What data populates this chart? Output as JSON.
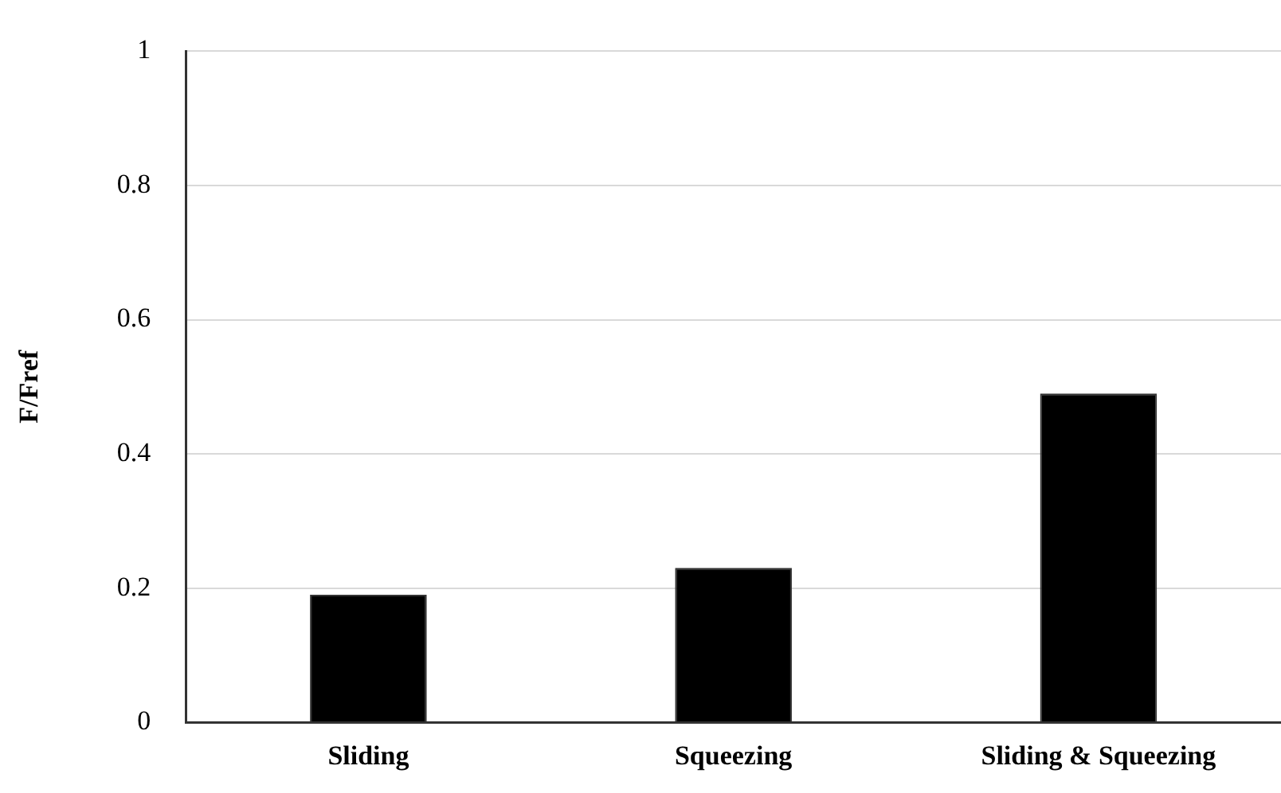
{
  "chart_data": {
    "type": "bar",
    "ylabel": "F/Fref",
    "categories": [
      "Sliding",
      "Squeezing",
      "Sliding & Squeezing"
    ],
    "values": [
      0.19,
      0.23,
      0.49
    ],
    "color": "#000000",
    "ylim": [
      0,
      1
    ],
    "yticks": [
      0,
      0.2,
      0.4,
      0.6,
      0.8,
      1
    ],
    "grid": "y",
    "legend": false
  }
}
